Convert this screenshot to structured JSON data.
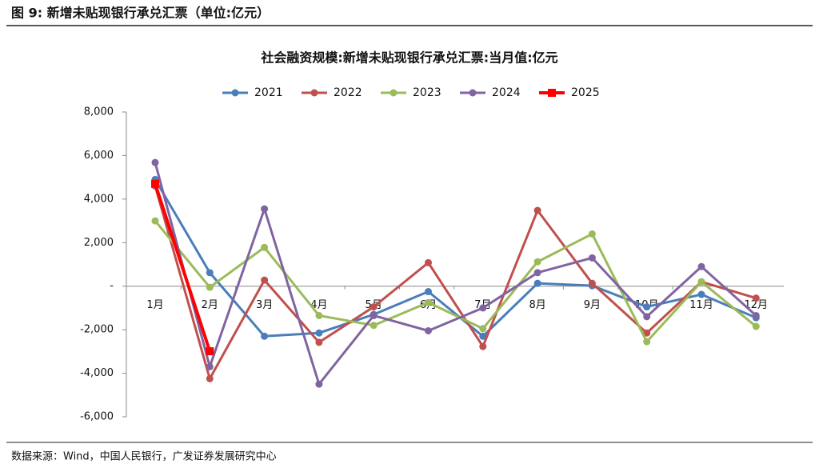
{
  "header": {
    "title": "图 9: 新增未贴现银行承兑汇票（单位:亿元）"
  },
  "footer": {
    "source": "数据来源：Wind，中国人民银行，广发证券发展研究中心"
  },
  "chart_data": {
    "type": "line",
    "title": "社会融资规模:新增未贴现银行承兑汇票:当月值:亿元",
    "categories": [
      "1月",
      "2月",
      "3月",
      "4月",
      "5月",
      "6月",
      "7月",
      "8月",
      "9月",
      "10月",
      "11月",
      "12月"
    ],
    "series": [
      {
        "name": "2021",
        "color": "#4a7ebb",
        "marker": "circle",
        "values": [
          4900,
          620,
          -2300,
          -2150,
          -1300,
          -250,
          -2300,
          130,
          20,
          -950,
          -380,
          -1450
        ]
      },
      {
        "name": "2022",
        "color": "#c0504d",
        "marker": "circle",
        "values": [
          4600,
          -4250,
          280,
          -2580,
          -950,
          1080,
          -2770,
          3480,
          130,
          -2150,
          200,
          -550
        ]
      },
      {
        "name": "2023",
        "color": "#9bbb59",
        "marker": "circle",
        "values": [
          3000,
          -50,
          1780,
          -1350,
          -1800,
          -750,
          -1950,
          1120,
          2400,
          -2550,
          200,
          -1850
        ]
      },
      {
        "name": "2024",
        "color": "#8064a2",
        "marker": "circle",
        "values": [
          5680,
          -3700,
          3550,
          -4500,
          -1350,
          -2050,
          -1000,
          620,
          1300,
          -1400,
          900,
          -1350
        ]
      },
      {
        "name": "2025",
        "color": "#ff0000",
        "marker": "square",
        "values": [
          4700,
          -2990,
          null,
          null,
          null,
          null,
          null,
          null,
          null,
          null,
          null,
          null
        ]
      }
    ],
    "ylim": [
      -6000,
      8000
    ],
    "yticks": [
      {
        "value": -6000,
        "label": "-6,000"
      },
      {
        "value": -4000,
        "label": "-4,000"
      },
      {
        "value": -2000,
        "label": "-2,000"
      },
      {
        "value": 0,
        "label": "-"
      },
      {
        "value": 2000,
        "label": "2,000"
      },
      {
        "value": 4000,
        "label": "4,000"
      },
      {
        "value": 6000,
        "label": "6,000"
      },
      {
        "value": 8000,
        "label": "8,000"
      }
    ],
    "grid": false,
    "legend": "top"
  }
}
